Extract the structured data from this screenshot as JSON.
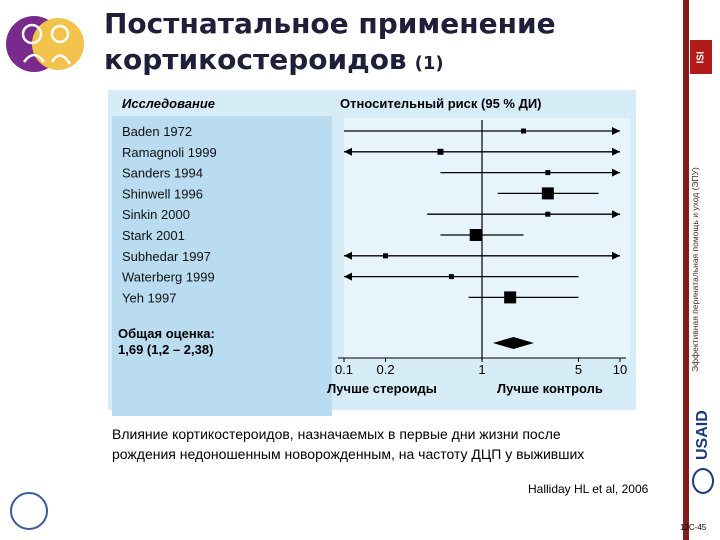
{
  "title": {
    "line1": "Постнатальное применение",
    "line2": "кортикостероидов",
    "number": "(1)"
  },
  "side_text": "Эффективная перинатальная помощь и уход (ЭПУ)",
  "logos": {
    "isi": "ISI",
    "usaid": "USAID"
  },
  "chart_data": {
    "type": "forest",
    "study_header": "Исследование",
    "effect_header": "Относительный риск (95 % ДИ)",
    "x_scale": "log",
    "xlim": [
      0.1,
      10
    ],
    "x_ticks": [
      "0.1",
      "0.2",
      "1",
      "5",
      "10"
    ],
    "x_tick_values": [
      0.1,
      0.2,
      1,
      5,
      10
    ],
    "left_label": "Лучше стероиды",
    "right_label": "Лучше контроль",
    "studies": [
      {
        "name": "Baden 1972",
        "rr": 2.0,
        "lo": 0.1,
        "hi": 10,
        "arrow_right": true
      },
      {
        "name": "Ramagnoli 1999",
        "rr": 0.5,
        "lo": 0.1,
        "hi": 10,
        "arrow_left": true,
        "arrow_right": true
      },
      {
        "name": "Sanders 1994",
        "rr": 3.0,
        "lo": 0.5,
        "hi": 10,
        "arrow_right": true
      },
      {
        "name": "Shinwell 1996",
        "rr": 3.0,
        "lo": 1.3,
        "hi": 7.0
      },
      {
        "name": "Sinkin 2000",
        "rr": 3.0,
        "lo": 0.4,
        "hi": 10,
        "arrow_right": true
      },
      {
        "name": "Stark 2001",
        "rr": 0.9,
        "lo": 0.5,
        "hi": 2.0
      },
      {
        "name": "Subhedar 1997",
        "rr": 0.2,
        "lo": 0.1,
        "hi": 10,
        "arrow_left": true,
        "arrow_right": true
      },
      {
        "name": "Waterberg 1999",
        "rr": 0.6,
        "lo": 0.1,
        "hi": 5.0,
        "arrow_left": true
      },
      {
        "name": "Yeh 1997",
        "rr": 1.6,
        "lo": 0.8,
        "hi": 5.0
      }
    ],
    "overall": {
      "label": "Общая оценка:",
      "value": "1,69 (1,2 – 2,38)",
      "rr": 1.69,
      "lo": 1.2,
      "hi": 2.38
    }
  },
  "caption": {
    "line1": "Влияние кортикостероидов, назначаемых в первые дни жизни после",
    "line2": "рождения недоношенным новорожденным, на частоту ДЦП у выживших"
  },
  "citation": "Halliday HL et al, 2006",
  "slide_number": "12C-45"
}
